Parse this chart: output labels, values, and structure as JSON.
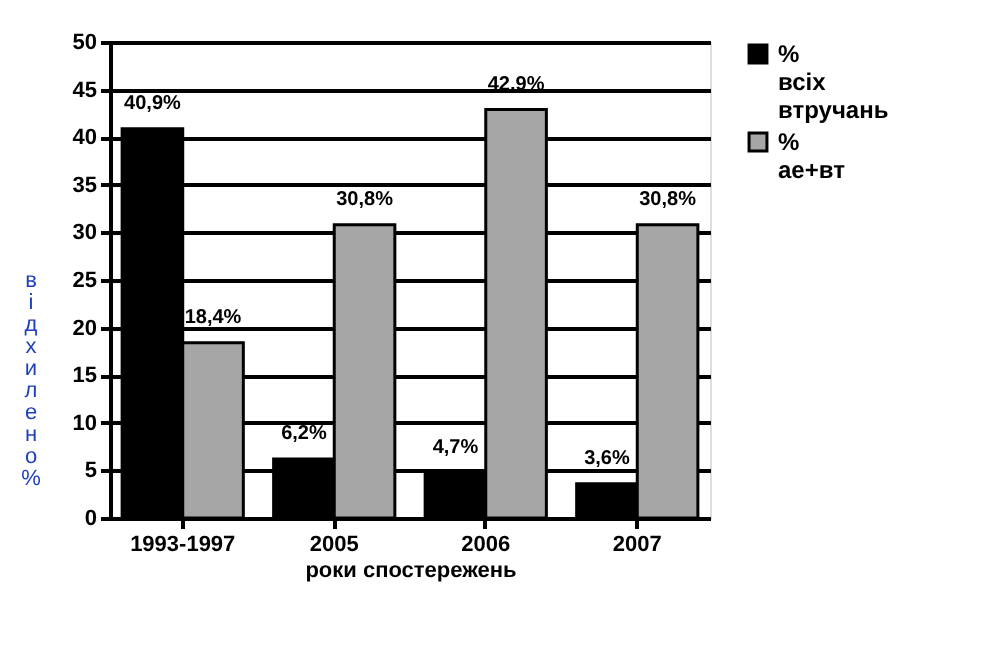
{
  "chart_data": {
    "type": "bar",
    "xlabel": "роки спостережень",
    "ylabel": "відхилено %",
    "categories": [
      "1993-1997",
      "2005",
      "2006",
      "2007"
    ],
    "series": [
      {
        "name": "% всіх втручань",
        "color": "#000000",
        "values": [
          40.9,
          6.2,
          4.7,
          3.6
        ],
        "value_labels": [
          "40,9%",
          "6,2%",
          "4,7%",
          "3,6%"
        ]
      },
      {
        "name": "% ае+вт",
        "color": "#a6a6a6",
        "values": [
          18.4,
          30.8,
          42.9,
          30.8
        ],
        "value_labels": [
          "18,4%",
          "30,8%",
          "42,9%",
          "30,8%"
        ]
      }
    ],
    "ylim": [
      0,
      50
    ],
    "yticks": [
      0,
      5,
      10,
      15,
      20,
      25,
      30,
      35,
      40,
      45,
      50
    ],
    "grid": "y",
    "legend": "right"
  }
}
